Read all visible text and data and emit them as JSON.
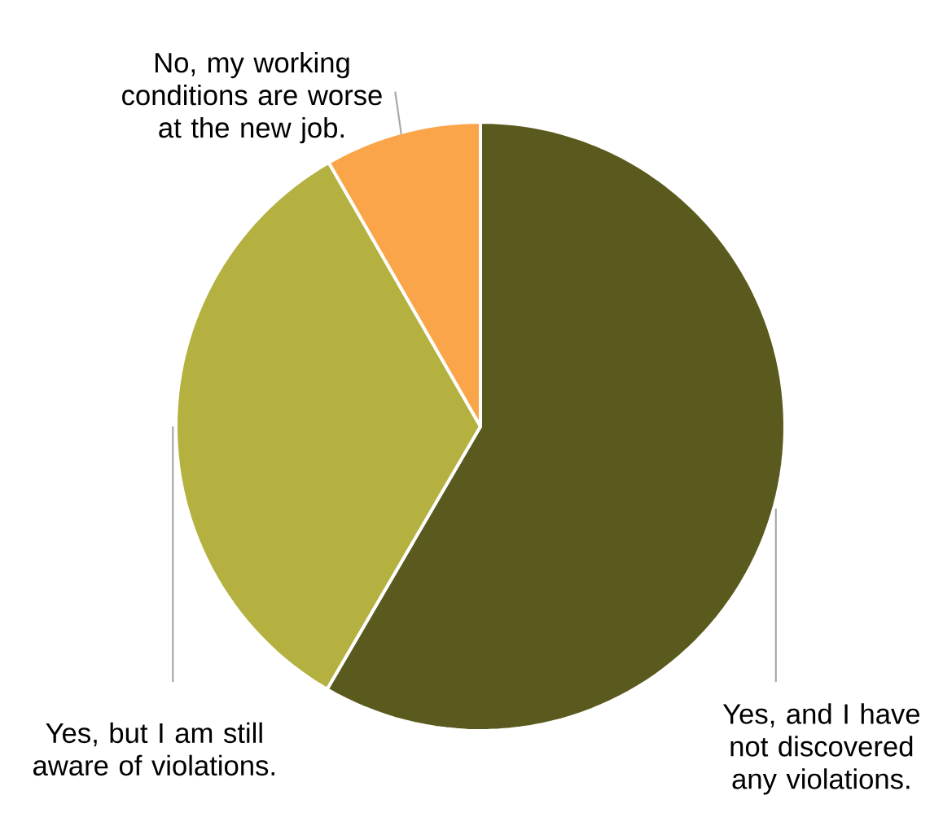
{
  "chart_data": {
    "type": "pie",
    "categories": [
      "Yes, and I have not discovered any violations.",
      "Yes, but I am still aware of violations.",
      "No, my working conditions are worse at the new job."
    ],
    "values": [
      58.4,
      33.3,
      8.3
    ],
    "colors": [
      "#5b5a1e",
      "#b5b141",
      "#fba54a"
    ]
  }
}
